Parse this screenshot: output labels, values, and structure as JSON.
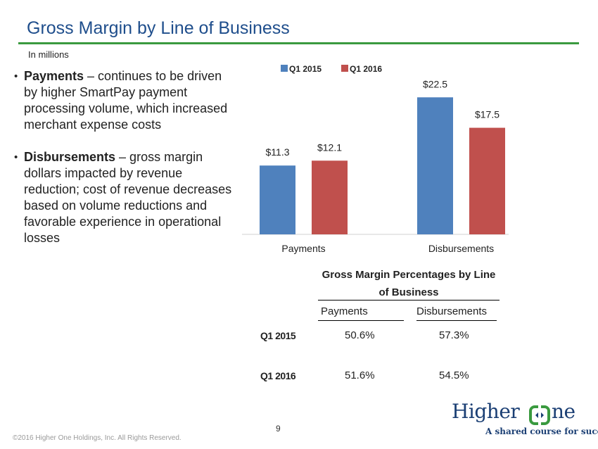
{
  "header": {
    "title": "Gross Margin by Line of Business",
    "subtitle": "In millions"
  },
  "bullets": [
    {
      "bold": "Payments",
      "text": " – continues to be driven by higher SmartPay payment processing volume, which increased merchant expense costs"
    },
    {
      "bold": "Disbursements",
      "text": " – gross margin dollars impacted by revenue reduction; cost of revenue decreases based on volume reductions and favorable experience in operational losses"
    }
  ],
  "chart_data": {
    "type": "bar",
    "categories": [
      "Payments",
      "Disbursements"
    ],
    "series": [
      {
        "name": "Q1 2015",
        "values": [
          11.3,
          22.5
        ],
        "labels": [
          "$11.3",
          "$22.5"
        ],
        "color": "#4f81bd"
      },
      {
        "name": "Q1 2016",
        "values": [
          12.1,
          17.5
        ],
        "labels": [
          "$12.1",
          "$17.5"
        ],
        "color": "#c0504d"
      }
    ],
    "ylim": [
      0,
      26
    ],
    "legend": "top",
    "grid": false
  },
  "table": {
    "title": "Gross Margin Percentages by Line of Business",
    "columns": [
      "Payments",
      "Disbursements"
    ],
    "rows": [
      {
        "label": "Q1 2015",
        "values": [
          "50.6%",
          "57.3%"
        ]
      },
      {
        "label": "Q1 2016",
        "values": [
          "51.6%",
          "54.5%"
        ]
      }
    ]
  },
  "footer": {
    "page": "9",
    "copyright": "©2016 Higher One Holdings, Inc. All Rights Reserved."
  },
  "logo": {
    "word": "Higher",
    "word2": "ne",
    "tagline": "A shared course for success",
    "icon": "higher-one-logo-icon",
    "brand_color": "#1b3f74",
    "accent_color": "#3a9a3f"
  }
}
